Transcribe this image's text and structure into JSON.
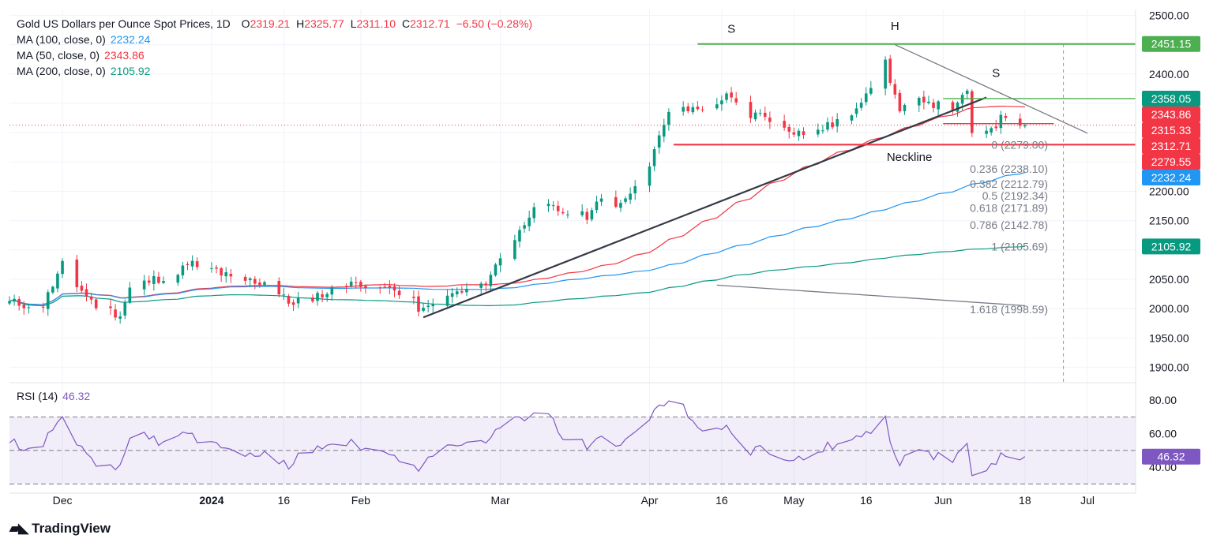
{
  "header": {
    "symbol": "Gold US Dollars per Ounce Spot Prices, 1D",
    "ohlc": {
      "o_label": "O",
      "o": "2319.21",
      "h_label": "H",
      "h": "2325.77",
      "l_label": "L",
      "l": "2311.10",
      "c_label": "C",
      "c": "2312.71",
      "change": "−6.50 (−0.28%)"
    }
  },
  "indicators": [
    {
      "label": "MA (100, close, 0)",
      "value": "2232.24",
      "color": "#2196f3"
    },
    {
      "label": "MA (50, close, 0)",
      "value": "2343.86",
      "color": "#f23645"
    },
    {
      "label": "MA (200, close, 0)",
      "value": "2105.92",
      "color": "#089981"
    }
  ],
  "rsi": {
    "label": "RSI (14)",
    "value": "46.32",
    "color": "#7e57c2"
  },
  "brand": "TradingView",
  "colors": {
    "up": "#089981",
    "down": "#f23645",
    "ma50": "#f23645",
    "ma100": "#2196f3",
    "ma200": "#089981",
    "rsi": "#7e57c2",
    "resist": "#4caf50",
    "neckline": "#f23645"
  },
  "chart_data": [
    {
      "type": "candlestick",
      "title": "Gold US Dollars per Ounce Spot Prices, 1D",
      "ylim": [
        1875,
        2510
      ],
      "y_ticks": [
        "2500.00",
        "2450.00",
        "2400.00",
        "2350.00",
        "2300.00",
        "2250.00",
        "2200.00",
        "2150.00",
        "2100.00",
        "2050.00",
        "2000.00",
        "1950.00",
        "1900.00"
      ],
      "x_ticks": [
        "Dec",
        "2024",
        "16",
        "Feb",
        "Mar",
        "Apr",
        "16",
        "May",
        "16",
        "Jun",
        "18",
        "Jul"
      ],
      "x_tick_dates": [
        "2023-12-01",
        "2024-01-01",
        "2024-01-16",
        "2024-02-01",
        "2024-03-01",
        "2024-04-01",
        "2024-04-16",
        "2024-05-01",
        "2024-05-16",
        "2024-06-01",
        "2024-06-18",
        "2024-07-01"
      ],
      "date_range": [
        "2023-11-20",
        "2024-07-11"
      ],
      "price_anchors": [
        [
          "2023-11-20",
          2010
        ],
        [
          "2023-11-27",
          2005
        ],
        [
          "2023-12-01",
          2075
        ],
        [
          "2023-12-04",
          2040
        ],
        [
          "2023-12-08",
          2005
        ],
        [
          "2023-12-13",
          1990
        ],
        [
          "2023-12-15",
          2035
        ],
        [
          "2023-12-22",
          2055
        ],
        [
          "2023-12-28",
          2075
        ],
        [
          "2024-01-02",
          2065
        ],
        [
          "2024-01-05",
          2050
        ],
        [
          "2024-01-12",
          2045
        ],
        [
          "2024-01-17",
          2010
        ],
        [
          "2024-01-24",
          2025
        ],
        [
          "2024-02-01",
          2045
        ],
        [
          "2024-02-05",
          2035
        ],
        [
          "2024-02-09",
          2030
        ],
        [
          "2024-02-14",
          1995
        ],
        [
          "2024-02-20",
          2025
        ],
        [
          "2024-02-26",
          2035
        ],
        [
          "2024-03-01",
          2085
        ],
        [
          "2024-03-05",
          2130
        ],
        [
          "2024-03-08",
          2180
        ],
        [
          "2024-03-14",
          2165
        ],
        [
          "2024-03-19",
          2160
        ],
        [
          "2024-03-21",
          2180
        ],
        [
          "2024-03-26",
          2180
        ],
        [
          "2024-04-01",
          2250
        ],
        [
          "2024-04-05",
          2330
        ],
        [
          "2024-04-12",
          2345
        ],
        [
          "2024-04-17",
          2360
        ],
        [
          "2024-04-22",
          2330
        ],
        [
          "2024-04-25",
          2330
        ],
        [
          "2024-05-02",
          2300
        ],
        [
          "2024-05-08",
          2310
        ],
        [
          "2024-05-13",
          2335
        ],
        [
          "2024-05-20",
          2420
        ],
        [
          "2024-05-23",
          2335
        ],
        [
          "2024-05-28",
          2360
        ],
        [
          "2024-06-03",
          2330
        ],
        [
          "2024-06-06",
          2375
        ],
        [
          "2024-06-07",
          2295
        ],
        [
          "2024-06-12",
          2315
        ],
        [
          "2024-06-14",
          2330
        ],
        [
          "2024-06-17",
          2319
        ],
        [
          "2024-06-18",
          2312.71
        ]
      ],
      "series": [
        {
          "name": "MA (50, close, 0)",
          "last": 2343.86
        },
        {
          "name": "MA (100, close, 0)",
          "last": 2232.24
        },
        {
          "name": "MA (200, close, 0)",
          "last": 2105.92
        }
      ],
      "price_labels": [
        {
          "text": "2451.15",
          "value": 2451.15,
          "color": "#4caf50"
        },
        {
          "text": "2358.05",
          "value": 2358.05,
          "color": "#089981"
        },
        {
          "text": "2343.86",
          "value": 2343.86,
          "color": "#f23645"
        },
        {
          "text": "2315.33",
          "value": 2315.33,
          "color": "#f23645"
        },
        {
          "text": "2312.71",
          "value": 2312.71,
          "color": "#f23645"
        },
        {
          "text": "2279.55",
          "value": 2279.55,
          "color": "#f23645"
        },
        {
          "text": "2232.24",
          "value": 2232.24,
          "color": "#2196f3"
        },
        {
          "text": "2105.92",
          "value": 2105.92,
          "color": "#089981"
        }
      ],
      "fibonacci": [
        {
          "text": "0 (2279.00)",
          "value": 2279.0
        },
        {
          "text": "0.236 (2238.10)",
          "value": 2238.1
        },
        {
          "text": "0.382 (2212.79)",
          "value": 2212.79
        },
        {
          "text": "0.5 (2192.34)",
          "value": 2192.34
        },
        {
          "text": "0.618 (2171.89)",
          "value": 2171.89
        },
        {
          "text": "0.786 (2142.78)",
          "value": 2142.78
        },
        {
          "text": "1 (2105.69)",
          "value": 2105.69
        },
        {
          "text": "1.618 (1998.59)",
          "value": 1998.59
        }
      ],
      "annotations": [
        {
          "text": "S",
          "date": "2024-04-18",
          "value": 2470
        },
        {
          "text": "H",
          "date": "2024-05-22",
          "value": 2475
        },
        {
          "text": "S",
          "date": "2024-06-12",
          "value": 2395
        },
        {
          "text": "Neckline",
          "date": "2024-05-25",
          "value": 2252
        }
      ],
      "lines": [
        {
          "name": "uptrend",
          "from": [
            "2024-02-14",
            1985
          ],
          "to": [
            "2024-06-10",
            2360
          ]
        },
        {
          "name": "neckline",
          "from": [
            "2024-04-06",
            2279.55
          ],
          "to": [
            "2024-07-11",
            2279.55
          ]
        },
        {
          "name": "resistance",
          "from": [
            "2024-04-11",
            2451.15
          ],
          "to": [
            "2024-07-11",
            2451.15
          ]
        },
        {
          "name": "support",
          "from": [
            "2024-06-01",
            2358.05
          ],
          "to": [
            "2024-07-11",
            2358.05
          ]
        },
        {
          "name": "downtrend",
          "from": [
            "2024-05-22",
            2450
          ],
          "to": [
            "2024-07-01",
            2299
          ]
        },
        {
          "name": "fib-lower",
          "from": [
            "2024-04-15",
            2040
          ],
          "to": [
            "2024-06-18",
            2005
          ]
        }
      ]
    },
    {
      "type": "line",
      "title": "RSI (14)",
      "ylim": [
        25,
        90
      ],
      "y_ticks": [
        "80.00",
        "60.00",
        "40.00"
      ],
      "levels": [
        70,
        50,
        30
      ],
      "last": 46.32
    }
  ]
}
